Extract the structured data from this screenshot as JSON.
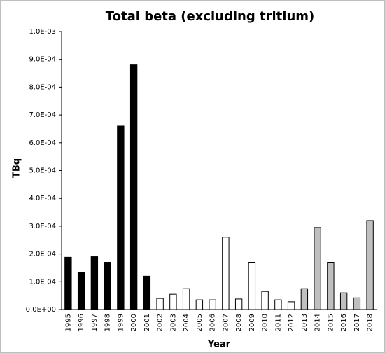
{
  "chart_data": {
    "type": "bar",
    "title": "Total beta (excluding tritium)",
    "x_label": "Year",
    "y_label": "TBq",
    "categories": [
      "1995",
      "1996",
      "1997",
      "1998",
      "1999",
      "2000",
      "2001",
      "2002",
      "2003",
      "2004",
      "2005",
      "2006",
      "2007",
      "2008",
      "2009",
      "2010",
      "2011",
      "2012",
      "2013",
      "2014",
      "2015",
      "2016",
      "2017",
      "2018"
    ],
    "values": [
      0.000188,
      0.000133,
      0.00019,
      0.00017,
      0.00066,
      0.00088,
      0.00012,
      4e-05,
      5.5e-05,
      7.5e-05,
      3.5e-05,
      3.5e-05,
      0.00026,
      3.8e-05,
      0.00017,
      6.5e-05,
      3.5e-05,
      2.8e-05,
      7.5e-05,
      0.000295,
      0.00017,
      6e-05,
      4.2e-05,
      0.00032
    ],
    "colors": [
      "#000000",
      "#000000",
      "#000000",
      "#000000",
      "#000000",
      "#000000",
      "#000000",
      "#ffffff",
      "#ffffff",
      "#ffffff",
      "#ffffff",
      "#ffffff",
      "#ffffff",
      "#ffffff",
      "#ffffff",
      "#ffffff",
      "#ffffff",
      "#ffffff",
      "#bfbfbf",
      "#bfbfbf",
      "#bfbfbf",
      "#bfbfbf",
      "#bfbfbf",
      "#bfbfbf"
    ],
    "ylim": [
      0,
      0.001
    ],
    "yticks": [
      {
        "value": 0,
        "label": "0.0E+00"
      },
      {
        "value": 0.0001,
        "label": "1.0E-04"
      },
      {
        "value": 0.0002,
        "label": "2.0E-04"
      },
      {
        "value": 0.0003,
        "label": "3.0E-04"
      },
      {
        "value": 0.0004,
        "label": "4.0E-04"
      },
      {
        "value": 0.0005,
        "label": "5.0E-04"
      },
      {
        "value": 0.0006,
        "label": "6.0E-04"
      },
      {
        "value": 0.0007,
        "label": "7.0E-04"
      },
      {
        "value": 0.0008,
        "label": "8.0E-04"
      },
      {
        "value": 0.0009,
        "label": "9.0E-04"
      },
      {
        "value": 0.001,
        "label": "1.0E-03"
      }
    ],
    "grid": false
  }
}
